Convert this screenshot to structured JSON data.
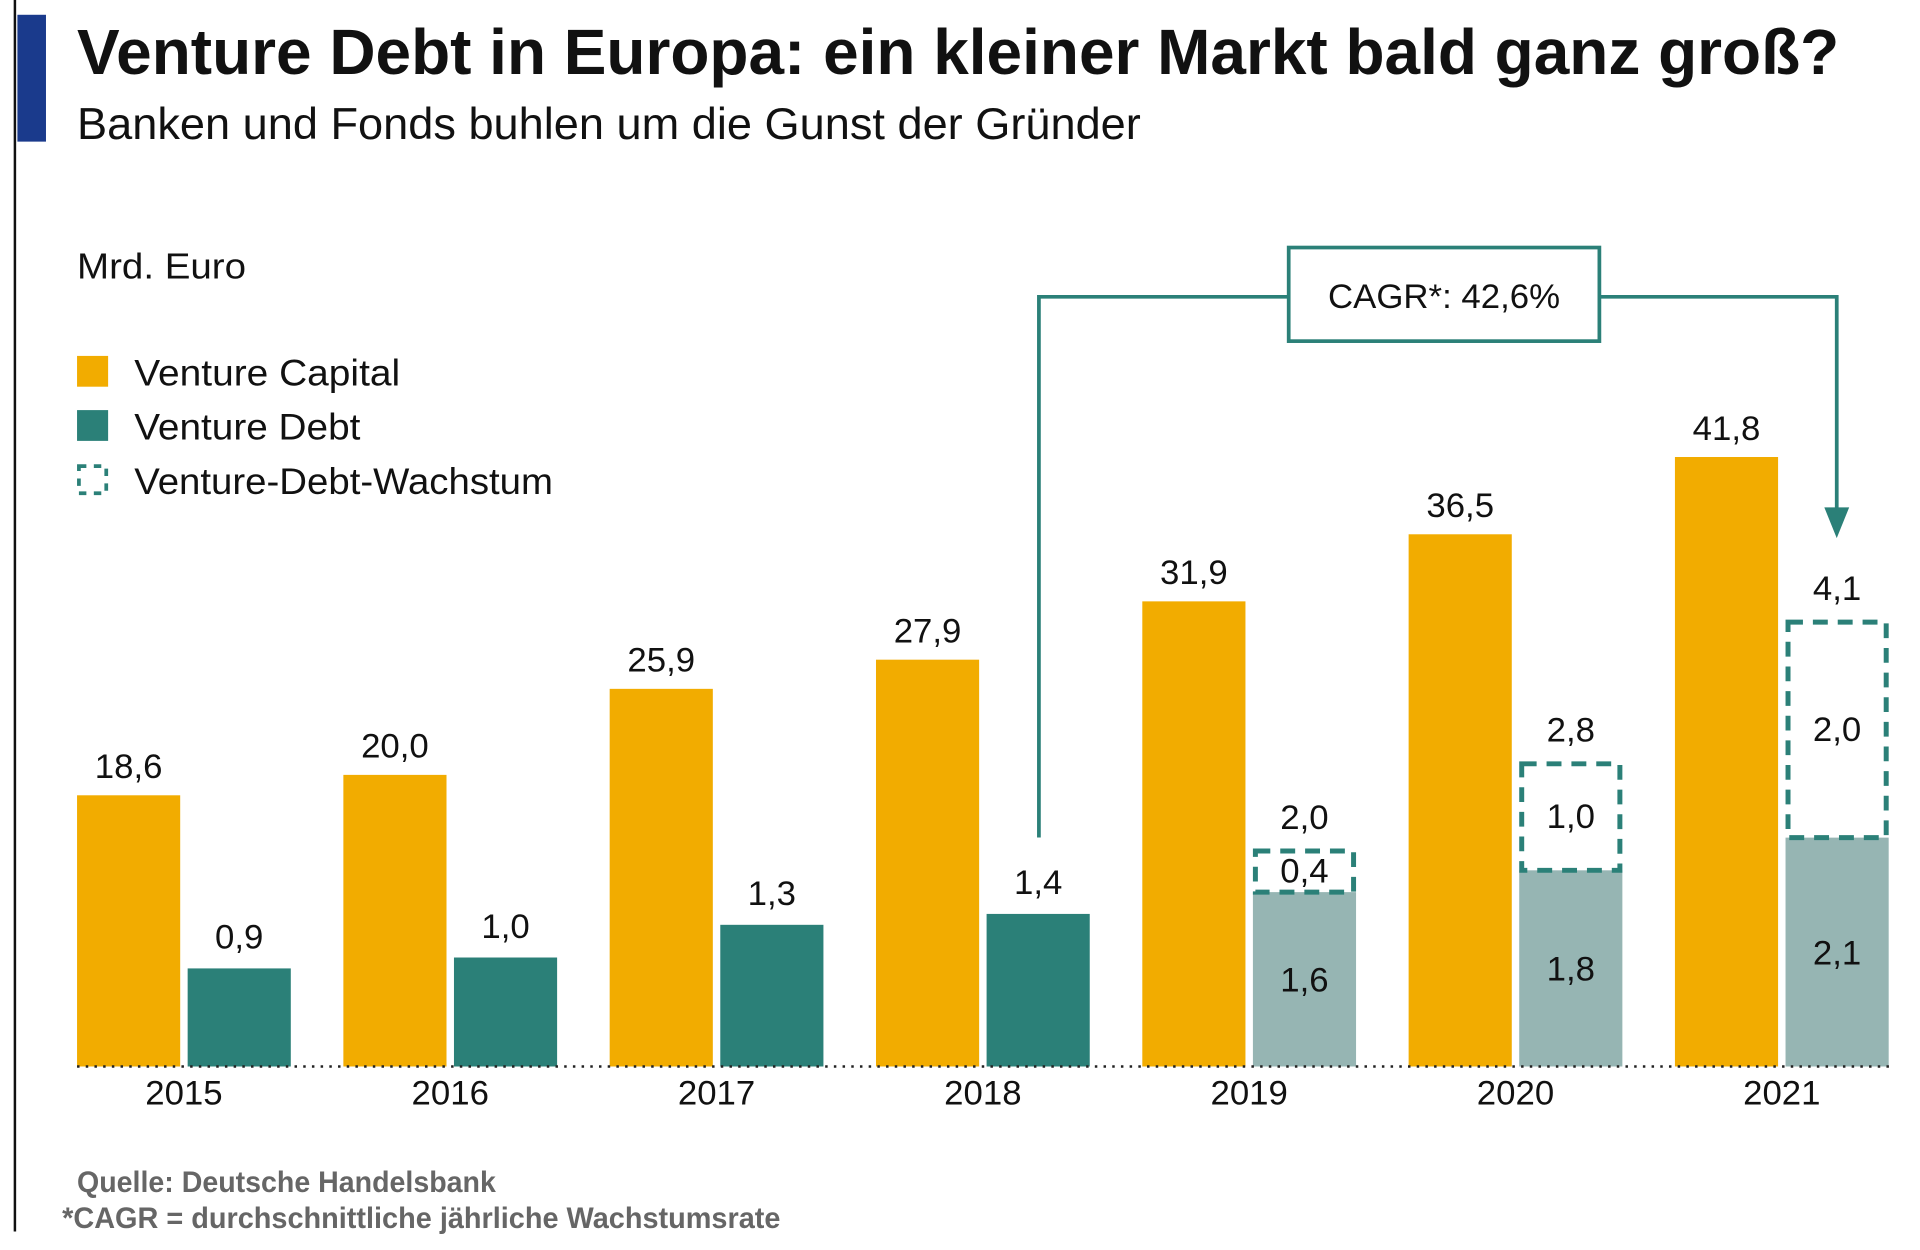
{
  "title": "Venture Debt in Europa: ein kleiner Markt bald ganz groß?",
  "subtitle": "Banken und Fonds buhlen um die Gunst der Gründer",
  "colors": {
    "accent_bar": "#1a3a8c",
    "venture_capital": "#f2ac00",
    "venture_debt": "#2b8078",
    "venture_debt_previous": "#96b5b3",
    "growth_outline": "#2b8078"
  },
  "chart_data": {
    "type": "bar",
    "ylabel": "Mrd. Euro",
    "categories": [
      "2015",
      "2016",
      "2017",
      "2018",
      "2019",
      "2020",
      "2021"
    ],
    "legend": [
      "Venture Capital",
      "Venture Debt",
      "Venture-Debt-Wachstum"
    ],
    "legend_placement": "top-left",
    "grid": false,
    "series": [
      {
        "name": "Venture Capital",
        "values": [
          18.6,
          20.0,
          25.9,
          27.9,
          31.9,
          36.5,
          41.8
        ],
        "labels": [
          "18,6",
          "20,0",
          "25,9",
          "27,9",
          "31,9",
          "36,5",
          "41,8"
        ]
      },
      {
        "name": "Venture Debt",
        "values": [
          0.9,
          1.0,
          1.3,
          1.4,
          2.0,
          2.8,
          4.1
        ],
        "labels": [
          "0,9",
          "1,0",
          "1,3",
          "1,4",
          "2,0",
          "2,8",
          "4,1"
        ],
        "base": [
          null,
          null,
          null,
          null,
          1.6,
          1.8,
          2.1
        ],
        "base_labels": [
          null,
          null,
          null,
          null,
          "1,6",
          "1,8",
          "2,1"
        ],
        "growth": [
          null,
          null,
          null,
          null,
          0.4,
          1.0,
          2.0
        ],
        "growth_labels": [
          null,
          null,
          null,
          null,
          "0,4",
          "1,0",
          "2,0"
        ]
      }
    ],
    "annotation": {
      "text": "CAGR*: 42,6%",
      "from": "2018",
      "to": "2021"
    }
  },
  "footer": {
    "source": "Quelle: Deutsche Handelsbank",
    "note": "*CAGR = durchschnittliche jährliche Wachstumsrate"
  }
}
